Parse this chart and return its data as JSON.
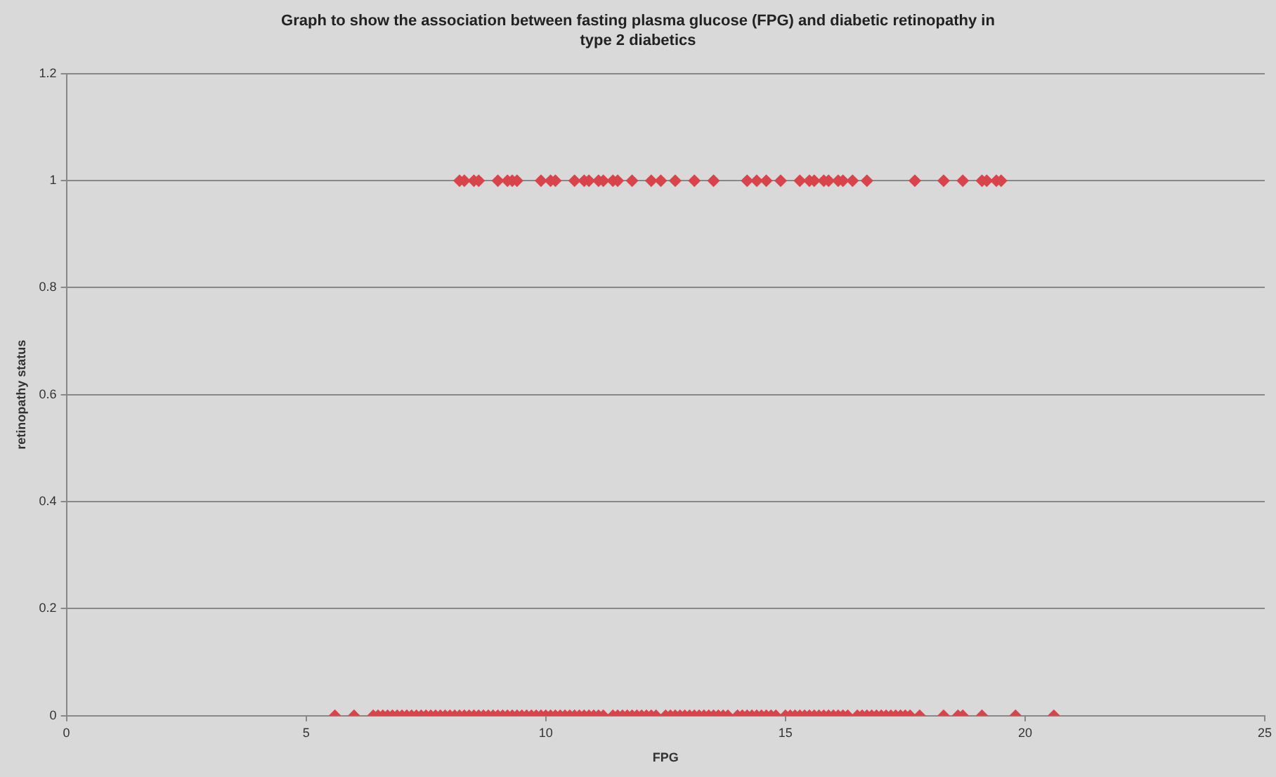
{
  "chart_data": {
    "type": "scatter",
    "title": "Graph to show the association between fasting plasma glucose (FPG) and diabetic retinopathy in type 2 diabetics",
    "xlabel": "FPG",
    "ylabel": "retinopathy status",
    "xlim": [
      0,
      25
    ],
    "xticks": [
      0,
      5,
      10,
      15,
      20,
      25
    ],
    "ylim": [
      0,
      1.2
    ],
    "yticks": [
      0,
      0.2,
      0.4,
      0.6,
      0.8,
      1,
      1.2
    ],
    "grid": "y",
    "marker": "diamond",
    "legend": false,
    "series": [
      {
        "color": "#d9434b",
        "x": [
          8.2,
          8.3,
          8.5,
          8.6,
          9.0,
          9.2,
          9.3,
          9.4,
          9.9,
          10.1,
          10.2,
          10.6,
          10.8,
          10.9,
          11.1,
          11.2,
          11.4,
          11.5,
          11.8,
          12.2,
          12.4,
          12.7,
          13.1,
          13.5,
          14.2,
          14.4,
          14.6,
          14.9,
          15.3,
          15.5,
          15.6,
          15.8,
          15.9,
          16.1,
          16.2,
          16.4,
          16.7,
          17.7,
          18.3,
          18.7,
          19.1,
          19.2,
          19.4,
          19.5
        ],
        "values": [
          1,
          1,
          1,
          1,
          1,
          1,
          1,
          1,
          1,
          1,
          1,
          1,
          1,
          1,
          1,
          1,
          1,
          1,
          1,
          1,
          1,
          1,
          1,
          1,
          1,
          1,
          1,
          1,
          1,
          1,
          1,
          1,
          1,
          1,
          1,
          1,
          1,
          1,
          1,
          1,
          1,
          1,
          1,
          1
        ]
      },
      {
        "color": "#d9434b",
        "x": [
          5.6,
          6.0,
          6.4,
          6.5,
          6.6,
          6.7,
          6.8,
          6.9,
          7.0,
          7.1,
          7.2,
          7.3,
          7.4,
          7.5,
          7.6,
          7.7,
          7.8,
          7.9,
          8.0,
          8.1,
          8.2,
          8.3,
          8.4,
          8.5,
          8.6,
          8.7,
          8.8,
          8.9,
          9.0,
          9.1,
          9.2,
          9.3,
          9.4,
          9.5,
          9.6,
          9.7,
          9.8,
          9.9,
          10.0,
          10.1,
          10.2,
          10.3,
          10.4,
          10.5,
          10.6,
          10.7,
          10.8,
          10.9,
          11.0,
          11.1,
          11.2,
          11.4,
          11.5,
          11.6,
          11.7,
          11.8,
          11.9,
          12.0,
          12.1,
          12.2,
          12.3,
          12.5,
          12.6,
          12.7,
          12.8,
          12.9,
          13.0,
          13.1,
          13.2,
          13.3,
          13.4,
          13.5,
          13.6,
          13.7,
          13.8,
          14.0,
          14.1,
          14.2,
          14.3,
          14.4,
          14.5,
          14.6,
          14.7,
          14.8,
          15.0,
          15.1,
          15.2,
          15.3,
          15.4,
          15.5,
          15.6,
          15.7,
          15.8,
          15.9,
          16.0,
          16.1,
          16.2,
          16.3,
          16.5,
          16.6,
          16.7,
          16.8,
          16.9,
          17.0,
          17.1,
          17.2,
          17.3,
          17.4,
          17.5,
          17.6,
          17.8,
          18.3,
          18.6,
          18.7,
          19.1,
          19.8,
          20.6
        ],
        "values": [
          0,
          0,
          0,
          0,
          0,
          0,
          0,
          0,
          0,
          0,
          0,
          0,
          0,
          0,
          0,
          0,
          0,
          0,
          0,
          0,
          0,
          0,
          0,
          0,
          0,
          0,
          0,
          0,
          0,
          0,
          0,
          0,
          0,
          0,
          0,
          0,
          0,
          0,
          0,
          0,
          0,
          0,
          0,
          0,
          0,
          0,
          0,
          0,
          0,
          0,
          0,
          0,
          0,
          0,
          0,
          0,
          0,
          0,
          0,
          0,
          0,
          0,
          0,
          0,
          0,
          0,
          0,
          0,
          0,
          0,
          0,
          0,
          0,
          0,
          0,
          0,
          0,
          0,
          0,
          0,
          0,
          0,
          0,
          0,
          0,
          0,
          0,
          0,
          0,
          0,
          0,
          0,
          0,
          0,
          0,
          0,
          0,
          0,
          0,
          0,
          0,
          0,
          0,
          0,
          0,
          0,
          0,
          0,
          0,
          0,
          0,
          0,
          0,
          0,
          0,
          0,
          0
        ]
      }
    ]
  }
}
